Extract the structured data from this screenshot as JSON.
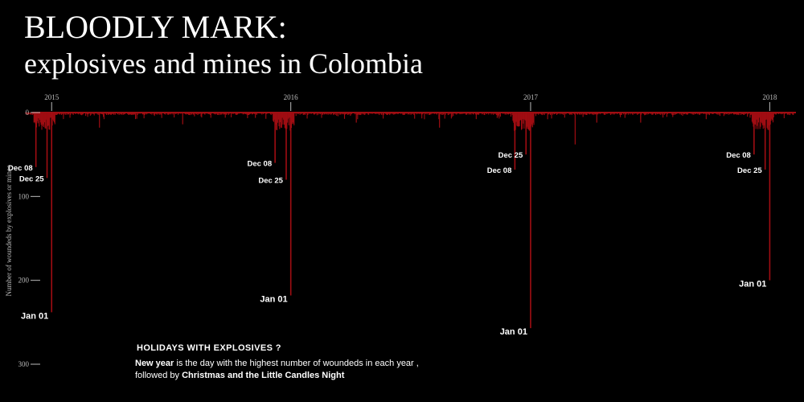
{
  "title": {
    "line1": "BLOODLY MARK:",
    "line2": "explosives and mines in Colombia"
  },
  "colors": {
    "background": "#000000",
    "bars": "#a00d12",
    "text": "#ffffff",
    "axis": "#bbbbbb"
  },
  "note": {
    "heading": "HOLIDAYS WITH EXPLOSIVES ?",
    "line1_bold": "New year",
    "line1_rest": " is the day with the highest number of woundeds in each year ,",
    "line2_prefix": "followed by ",
    "line2_bold": "Christmas and the Little Candles Night"
  },
  "chart_data": {
    "type": "bar",
    "orientation": "downward",
    "ylabel": "Number of  woundeds  by explosives or mines",
    "ylim": [
      0,
      300
    ],
    "yticks": [
      "0",
      "100",
      "200",
      "300"
    ],
    "xlim": [
      "2014-11-20",
      "2018-02-10"
    ],
    "xticks": [
      {
        "label": "2015",
        "date": "2015-01-01"
      },
      {
        "label": "2016",
        "date": "2016-01-01"
      },
      {
        "label": "2017",
        "date": "2017-01-01"
      },
      {
        "label": "2018",
        "date": "2018-01-01"
      }
    ],
    "peaks": [
      {
        "date": "2014-12-08",
        "value": 65,
        "label": "Dec 08"
      },
      {
        "date": "2014-12-25",
        "value": 78,
        "label": "Dec 25"
      },
      {
        "date": "2015-01-01",
        "value": 238,
        "label": "Jan 01"
      },
      {
        "date": "2015-12-08",
        "value": 60,
        "label": "Dec 08"
      },
      {
        "date": "2015-12-25",
        "value": 80,
        "label": "Dec 25"
      },
      {
        "date": "2016-01-01",
        "value": 218,
        "label": "Jan 01"
      },
      {
        "date": "2016-12-08",
        "value": 68,
        "label": "Dec 08"
      },
      {
        "date": "2016-12-25",
        "value": 50,
        "label": "Dec 25"
      },
      {
        "date": "2017-01-01",
        "value": 257,
        "label": "Jan 01"
      },
      {
        "date": "2017-12-08",
        "value": 50,
        "label": "Dec 08"
      },
      {
        "date": "2017-12-25",
        "value": 68,
        "label": "Dec 25"
      },
      {
        "date": "2018-01-01",
        "value": 200,
        "label": "Jan 01"
      }
    ]
  }
}
